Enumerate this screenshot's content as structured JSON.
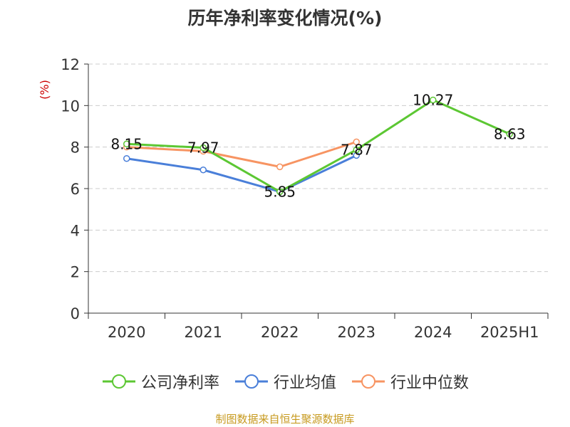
{
  "chart_data": {
    "type": "line",
    "title": "历年净利率变化情况(%)",
    "ylabel": "(%)",
    "xlabel": "",
    "categories": [
      "2020",
      "2021",
      "2022",
      "2023",
      "2024",
      "2025H1"
    ],
    "ylim": [
      0,
      12
    ],
    "yticks": [
      0,
      2,
      4,
      6,
      8,
      10,
      12
    ],
    "grid": true,
    "legend_position": "bottom",
    "series": [
      {
        "name": "公司净利率",
        "color": "#5cc733",
        "values": [
          8.15,
          7.97,
          5.85,
          7.87,
          10.27,
          8.63
        ],
        "labels": [
          "8.15",
          "7.97",
          "5.85",
          "7.87",
          "10.27",
          "8.63"
        ]
      },
      {
        "name": "行业均值",
        "color": "#4a7fd9",
        "values": [
          7.45,
          6.9,
          5.85,
          7.6,
          null,
          null
        ]
      },
      {
        "name": "行业中位数",
        "color": "#f79462",
        "values": [
          8.0,
          7.8,
          7.05,
          8.25,
          null,
          null
        ]
      }
    ]
  },
  "source": {
    "text": "制图数据来自恒生聚源数据库",
    "color": "#c79a1f"
  },
  "colors": {
    "axis": "#333333",
    "grid": "#cccccc",
    "ylabel": "#cc0000"
  }
}
